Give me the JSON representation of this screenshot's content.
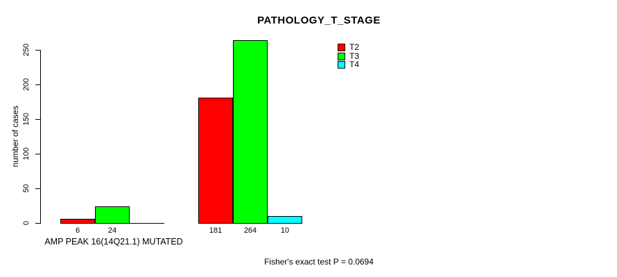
{
  "figure": {
    "background": "#ffffff",
    "text_color": "#000000",
    "axis_color": "#000000"
  },
  "chart_data": {
    "type": "bar",
    "title": "PATHOLOGY_T_STAGE",
    "ylabel": "number of cases",
    "xlabel": "AMP PEAK 16(14Q21.1) MUTATED",
    "footnote": "Fisher's exact test P = 0.0694",
    "ylim": [
      0,
      250
    ],
    "yticks": [
      0,
      50,
      100,
      150,
      200,
      250
    ],
    "grid": false,
    "bar_borders": true,
    "legend_position": "inside-top-right",
    "value_labels_shown": true,
    "series": [
      {
        "name": "T2",
        "color": "#ff0000",
        "values": [
          6,
          181
        ]
      },
      {
        "name": "T3",
        "color": "#00ff00",
        "values": [
          24,
          264
        ]
      },
      {
        "name": "T4",
        "color": "#00ffff",
        "values": [
          0,
          10
        ]
      }
    ]
  }
}
